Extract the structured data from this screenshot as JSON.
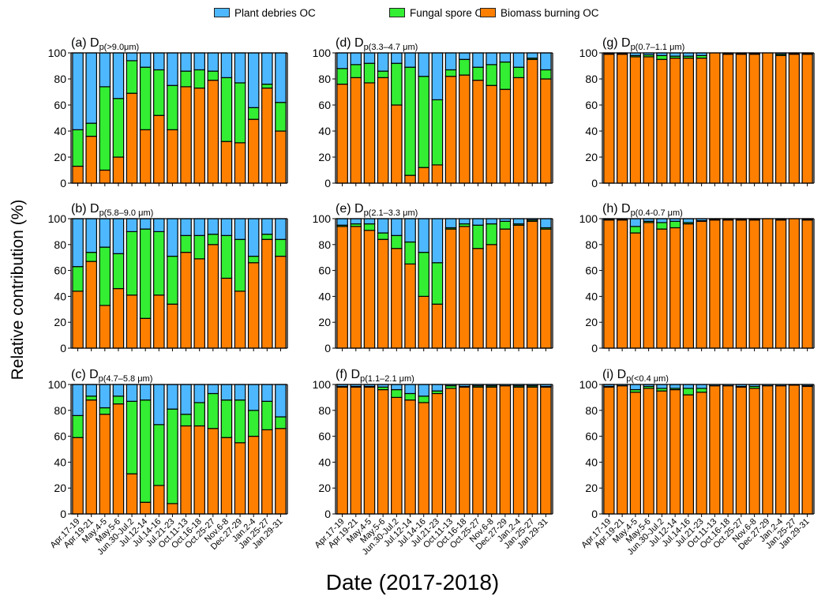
{
  "legend": [
    {
      "label": "Plant debries OC",
      "color": "#4db8ff"
    },
    {
      "label": "Fungal spore OC",
      "color": "#33ee33"
    },
    {
      "label": "Biomass burning OC",
      "color": "#ff8000"
    }
  ],
  "ylabel": "Relative contribution (%)",
  "xlabel": "Date (2017-2018)",
  "chart_data": {
    "type": "bar",
    "stacked": true,
    "title": "",
    "xlabel": "Date (2017-2018)",
    "ylabel": "Relative contribution (%)",
    "ylim": [
      0,
      100
    ],
    "yticks": [
      0,
      20,
      40,
      60,
      80,
      100
    ],
    "grid": false,
    "legend_position": "top",
    "categories": [
      "Apr.17-19",
      "Apr.19-21",
      "May.4-5",
      "May.5-6",
      "Jun.30-Jul.2",
      "Jul.12-14",
      "Jul.14-16",
      "Jul.21-23",
      "Oct.11-13",
      "Oct.16-18",
      "Oct.25-27",
      "Nov.6-8",
      "Dec.27-29",
      "Jan.2-4",
      "Jan.25-27",
      "Jan.29-31"
    ],
    "series_names": [
      "Biomass burning OC",
      "Fungal spore OC",
      "Plant debries OC"
    ],
    "panels": [
      {
        "letter": "(a)",
        "size_range": "(>9.0μm)",
        "series": [
          {
            "name": "Biomass burning OC",
            "values": [
              13,
              36,
              10,
              20,
              69,
              41,
              52,
              41,
              74,
              73,
              79,
              32,
              31,
              49,
              73,
              40
            ]
          },
          {
            "name": "Fungal spore OC",
            "values": [
              28,
              10,
              64,
              45,
              25,
              48,
              35,
              34,
              12,
              14,
              7,
              49,
              46,
              9,
              3,
              22
            ]
          },
          {
            "name": "Plant debries OC",
            "values": [
              59,
              54,
              26,
              35,
              6,
              11,
              13,
              25,
              14,
              13,
              14,
              19,
              23,
              42,
              24,
              38
            ]
          }
        ]
      },
      {
        "letter": "(d)",
        "size_range": "(3.3–4.7 μm)",
        "series": [
          {
            "name": "Biomass burning OC",
            "values": [
              76,
              81,
              77,
              81,
              60,
              6,
              12,
              14,
              82,
              83,
              79,
              75,
              72,
              81,
              95,
              80
            ]
          },
          {
            "name": "Fungal spore OC",
            "values": [
              12,
              10,
              15,
              5,
              32,
              83,
              70,
              50,
              5,
              12,
              10,
              16,
              21,
              8,
              1,
              7
            ]
          },
          {
            "name": "Plant debries OC",
            "values": [
              12,
              9,
              8,
              14,
              8,
              11,
              18,
              36,
              13,
              5,
              11,
              9,
              7,
              11,
              4,
              13
            ]
          }
        ]
      },
      {
        "letter": "(g)",
        "size_range": "(0.7–1.1 μm)",
        "series": [
          {
            "name": "Biomass burning OC",
            "values": [
              99,
              99,
              97,
              97,
              95,
              96,
              96,
              96,
              100,
              99,
              99,
              99,
              100,
              98,
              99,
              99
            ]
          },
          {
            "name": "Fungal spore OC",
            "values": [
              0.5,
              0.5,
              1,
              1.5,
              3,
              1.5,
              1.5,
              2,
              0,
              0.5,
              0.5,
              0.5,
              0,
              1,
              0.5,
              0.5
            ]
          },
          {
            "name": "Plant debries OC",
            "values": [
              0.5,
              0.5,
              2,
              1.5,
              2,
              2.5,
              2.5,
              2,
              0,
              0.5,
              0.5,
              0.5,
              0,
              1,
              0.5,
              0.5
            ]
          }
        ]
      },
      {
        "letter": "(b)",
        "size_range": "(5.8–9.0 μm)",
        "series": [
          {
            "name": "Biomass burning OC",
            "values": [
              44,
              67,
              33,
              46,
              41,
              23,
              41,
              34,
              74,
              69,
              80,
              54,
              44,
              66,
              84,
              71
            ]
          },
          {
            "name": "Fungal spore OC",
            "values": [
              19,
              7,
              45,
              27,
              49,
              69,
              49,
              37,
              13,
              18,
              8,
              33,
              40,
              5,
              4,
              13
            ]
          },
          {
            "name": "Plant debries OC",
            "values": [
              37,
              26,
              22,
              27,
              10,
              8,
              10,
              29,
              13,
              13,
              12,
              13,
              16,
              29,
              12,
              16
            ]
          }
        ]
      },
      {
        "letter": "(e)",
        "size_range": "(2.1–3.3 μm)",
        "series": [
          {
            "name": "Biomass burning OC",
            "values": [
              94,
              94,
              91,
              84,
              77,
              65,
              40,
              34,
              92,
              94,
              77,
              80,
              92,
              95,
              98,
              92
            ]
          },
          {
            "name": "Fungal spore OC",
            "values": [
              1,
              2,
              5,
              5,
              10,
              17,
              34,
              32,
              1,
              2,
              18,
              16,
              6,
              1,
              1,
              1
            ]
          },
          {
            "name": "Plant debries OC",
            "values": [
              5,
              4,
              4,
              11,
              13,
              18,
              26,
              34,
              7,
              4,
              5,
              4,
              2,
              4,
              1,
              7
            ]
          }
        ]
      },
      {
        "letter": "(h)",
        "size_range": "(0.4-0.7 μm)",
        "series": [
          {
            "name": "Biomass burning OC",
            "values": [
              99,
              99,
              89,
              97,
              92,
              93,
              96,
              98,
              99,
              99,
              99,
              99,
              100,
              99,
              100,
              99
            ]
          },
          {
            "name": "Fungal spore OC",
            "values": [
              0.5,
              0.5,
              5,
              1,
              5,
              5,
              1,
              0.5,
              0.5,
              0.5,
              0.5,
              0.5,
              0,
              0.5,
              0,
              0.5
            ]
          },
          {
            "name": "Plant debries OC",
            "values": [
              0.5,
              0.5,
              6,
              2,
              3,
              2,
              3,
              1.5,
              0.5,
              0.5,
              0.5,
              0.5,
              0,
              0.5,
              0,
              0.5
            ]
          }
        ]
      },
      {
        "letter": "(c)",
        "size_range": "(4.7–5.8 μm)",
        "series": [
          {
            "name": "Biomass burning OC",
            "values": [
              59,
              88,
              77,
              85,
              31,
              9,
              22,
              8,
              68,
              68,
              66,
              59,
              55,
              60,
              65,
              66
            ]
          },
          {
            "name": "Fungal spore OC",
            "values": [
              17,
              3,
              5,
              6,
              56,
              79,
              47,
              73,
              9,
              18,
              27,
              29,
              33,
              20,
              22,
              9
            ]
          },
          {
            "name": "Plant debries OC",
            "values": [
              24,
              9,
              18,
              9,
              13,
              12,
              31,
              19,
              23,
              14,
              7,
              12,
              12,
              20,
              13,
              25
            ]
          }
        ]
      },
      {
        "letter": "(f)",
        "size_range": "(1.1–2.1 μm)",
        "series": [
          {
            "name": "Biomass burning OC",
            "values": [
              98,
              98,
              98,
              96,
              90,
              88,
              86,
              93,
              97,
              98,
              98,
              98,
              99,
              98,
              98,
              98
            ]
          },
          {
            "name": "Fungal spore OC",
            "values": [
              0.5,
              0.5,
              0.5,
              2,
              6,
              5,
              5,
              2,
              2,
              0.5,
              1,
              1,
              0,
              1,
              1,
              0.5
            ]
          },
          {
            "name": "Plant debries OC",
            "values": [
              1.5,
              1.5,
              1.5,
              2,
              4,
              7,
              9,
              5,
              1,
              1.5,
              1,
              1,
              1,
              1,
              1,
              1.5
            ]
          }
        ]
      },
      {
        "letter": "(i)",
        "size_range": "(<0.4 μm)",
        "series": [
          {
            "name": "Biomass burning OC",
            "values": [
              98,
              99,
              94,
              97,
              95,
              96,
              92,
              94,
              99,
              99,
              98,
              97,
              99,
              99,
              99.5,
              98.5
            ]
          },
          {
            "name": "Fungal spore OC",
            "values": [
              0.5,
              0,
              2,
              1.5,
              2,
              1,
              5,
              3,
              0,
              0,
              0.5,
              1.5,
              0,
              0,
              0,
              0.5
            ]
          },
          {
            "name": "Plant debries OC",
            "values": [
              1.5,
              1,
              4,
              1.5,
              3,
              3,
              3,
              3,
              1,
              1,
              1.5,
              1.5,
              1,
              1,
              0.5,
              1
            ]
          }
        ]
      }
    ]
  }
}
